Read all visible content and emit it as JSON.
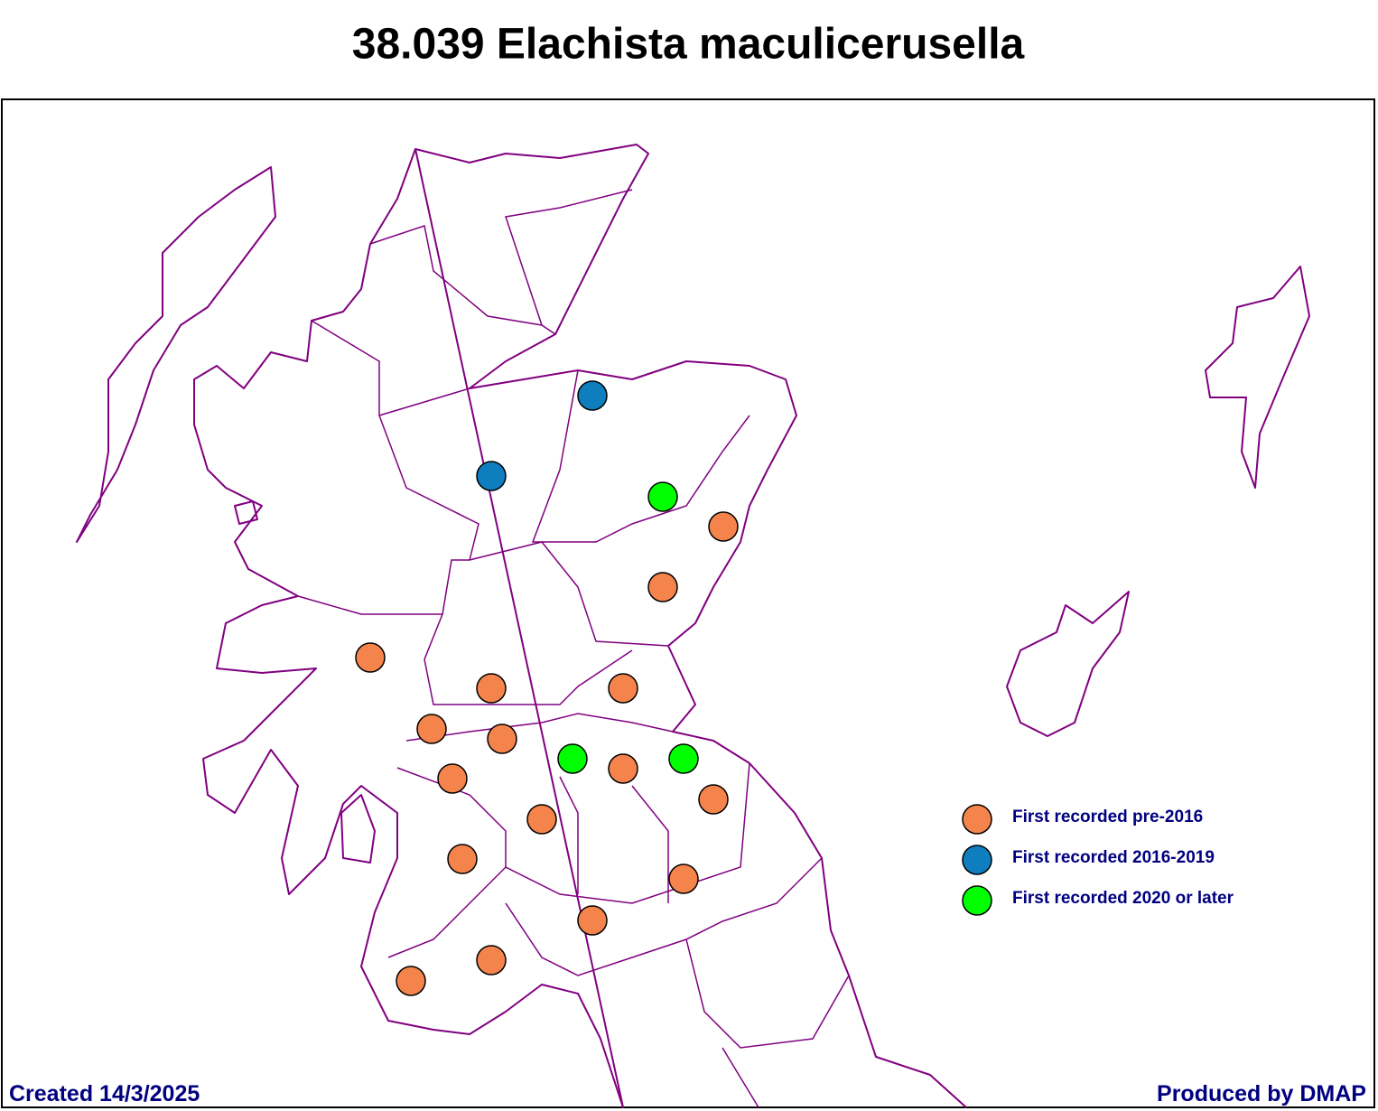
{
  "title": "38.039 Elachista maculicerusella",
  "legend": [
    {
      "label": "First recorded pre-2016",
      "color": "#f4844c"
    },
    {
      "label": "First recorded 2016-2019",
      "color": "#0f7ebf"
    },
    {
      "label": "First recorded 2020 or later",
      "color": "#00ff00"
    }
  ],
  "footer": {
    "created": "Created 14/3/2025",
    "producer": "Produced by DMAP"
  }
}
